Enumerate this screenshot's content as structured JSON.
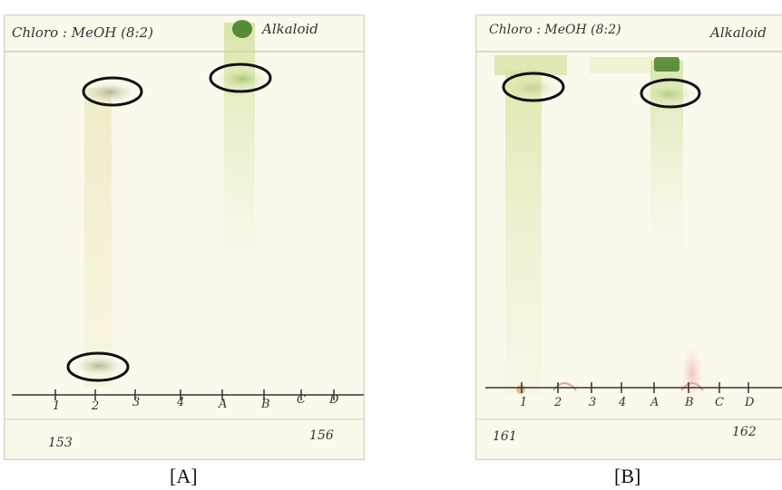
{
  "panels": [
    {
      "caption": "[A]",
      "solvent": "Chloro : MeOH (8:2)",
      "label": "Alkaloid",
      "lanes": [
        "1",
        "2",
        "3",
        "4",
        "A",
        "B",
        "C",
        "D"
      ],
      "sample_left": "153",
      "sample_right": "156"
    },
    {
      "caption": "[B]",
      "solvent": "Chloro : MeOH (8:2)",
      "label": "Alkaloid",
      "lanes": [
        "1",
        "2",
        "3",
        "4",
        "A",
        "B",
        "C",
        "D"
      ],
      "sample_left": "161",
      "sample_right": "162"
    }
  ],
  "colors": {
    "plate": "#fbf8ec",
    "green_spot": "#8fb03a",
    "dark_green": "#3f7a1e",
    "pink_spot": "#e6a0a0",
    "orange_spot": "#d9a552",
    "circle": "#111111"
  }
}
